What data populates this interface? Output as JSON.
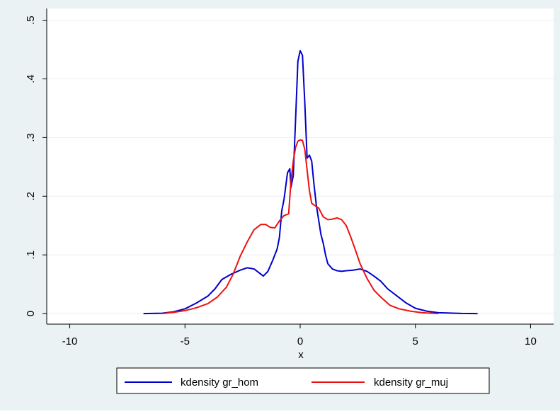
{
  "chart_data": {
    "type": "line",
    "title": "",
    "xlabel": "x",
    "ylabel": "",
    "xlim": [
      -11,
      11
    ],
    "ylim": [
      -0.018,
      0.52
    ],
    "x_ticks": [
      -10,
      -5,
      0,
      5,
      10
    ],
    "x_tick_labels": [
      "-10",
      "-5",
      "0",
      "5",
      "10"
    ],
    "y_ticks": [
      0,
      0.1,
      0.2,
      0.3,
      0.4,
      0.5
    ],
    "y_tick_labels": [
      "0",
      ".1",
      ".2",
      ".3",
      ".4",
      ".5"
    ],
    "grid": true,
    "legend_position": "bottom",
    "colors": {
      "plot_region": "#ffffff",
      "outer_region": "#eaf2f3",
      "grid": "#e9eef0",
      "hom": "#0000cc",
      "muj": "#ee1111"
    },
    "series": [
      {
        "name": "kdensity gr_hom",
        "color": "#0000cc",
        "points": [
          [
            -6.8,
            0.0
          ],
          [
            -6.0,
            0.0005
          ],
          [
            -5.5,
            0.003
          ],
          [
            -5.0,
            0.008
          ],
          [
            -4.5,
            0.018
          ],
          [
            -4.0,
            0.03
          ],
          [
            -3.7,
            0.042
          ],
          [
            -3.4,
            0.058
          ],
          [
            -3.0,
            0.067
          ],
          [
            -2.6,
            0.074
          ],
          [
            -2.3,
            0.078
          ],
          [
            -2.0,
            0.076
          ],
          [
            -1.8,
            0.07
          ],
          [
            -1.6,
            0.064
          ],
          [
            -1.4,
            0.072
          ],
          [
            -1.2,
            0.09
          ],
          [
            -1.0,
            0.11
          ],
          [
            -0.9,
            0.13
          ],
          [
            -0.8,
            0.175
          ],
          [
            -0.7,
            0.195
          ],
          [
            -0.55,
            0.24
          ],
          [
            -0.45,
            0.247
          ],
          [
            -0.4,
            0.215
          ],
          [
            -0.3,
            0.235
          ],
          [
            -0.2,
            0.33
          ],
          [
            -0.1,
            0.43
          ],
          [
            0.0,
            0.448
          ],
          [
            0.1,
            0.44
          ],
          [
            0.2,
            0.36
          ],
          [
            0.3,
            0.265
          ],
          [
            0.4,
            0.27
          ],
          [
            0.5,
            0.26
          ],
          [
            0.6,
            0.22
          ],
          [
            0.7,
            0.185
          ],
          [
            0.8,
            0.16
          ],
          [
            0.9,
            0.135
          ],
          [
            1.0,
            0.12
          ],
          [
            1.1,
            0.1
          ],
          [
            1.2,
            0.085
          ],
          [
            1.4,
            0.076
          ],
          [
            1.6,
            0.073
          ],
          [
            1.8,
            0.072
          ],
          [
            2.0,
            0.073
          ],
          [
            2.3,
            0.074
          ],
          [
            2.6,
            0.076
          ],
          [
            2.9,
            0.072
          ],
          [
            3.2,
            0.064
          ],
          [
            3.5,
            0.055
          ],
          [
            3.8,
            0.042
          ],
          [
            4.2,
            0.03
          ],
          [
            4.6,
            0.018
          ],
          [
            5.0,
            0.009
          ],
          [
            5.5,
            0.004
          ],
          [
            6.0,
            0.0015
          ],
          [
            7.0,
            0.0002
          ],
          [
            7.7,
            0.0
          ]
        ]
      },
      {
        "name": "kdensity gr_muj",
        "color": "#ee1111",
        "points": [
          [
            -6.0,
            0.0
          ],
          [
            -5.5,
            0.002
          ],
          [
            -5.0,
            0.005
          ],
          [
            -4.5,
            0.01
          ],
          [
            -4.0,
            0.017
          ],
          [
            -3.6,
            0.028
          ],
          [
            -3.2,
            0.045
          ],
          [
            -2.9,
            0.068
          ],
          [
            -2.6,
            0.098
          ],
          [
            -2.3,
            0.122
          ],
          [
            -2.0,
            0.143
          ],
          [
            -1.7,
            0.152
          ],
          [
            -1.5,
            0.152
          ],
          [
            -1.3,
            0.147
          ],
          [
            -1.1,
            0.146
          ],
          [
            -0.9,
            0.158
          ],
          [
            -0.7,
            0.167
          ],
          [
            -0.5,
            0.17
          ],
          [
            -0.4,
            0.225
          ],
          [
            -0.3,
            0.26
          ],
          [
            -0.2,
            0.283
          ],
          [
            -0.1,
            0.294
          ],
          [
            0.0,
            0.296
          ],
          [
            0.1,
            0.295
          ],
          [
            0.2,
            0.28
          ],
          [
            0.3,
            0.245
          ],
          [
            0.4,
            0.21
          ],
          [
            0.5,
            0.188
          ],
          [
            0.6,
            0.185
          ],
          [
            0.8,
            0.18
          ],
          [
            1.0,
            0.165
          ],
          [
            1.2,
            0.16
          ],
          [
            1.4,
            0.161
          ],
          [
            1.6,
            0.163
          ],
          [
            1.8,
            0.16
          ],
          [
            2.0,
            0.15
          ],
          [
            2.2,
            0.13
          ],
          [
            2.4,
            0.108
          ],
          [
            2.6,
            0.085
          ],
          [
            2.9,
            0.06
          ],
          [
            3.2,
            0.04
          ],
          [
            3.5,
            0.028
          ],
          [
            3.9,
            0.014
          ],
          [
            4.3,
            0.008
          ],
          [
            4.8,
            0.004
          ],
          [
            5.3,
            0.0015
          ],
          [
            6.0,
            0.0
          ]
        ]
      }
    ]
  }
}
